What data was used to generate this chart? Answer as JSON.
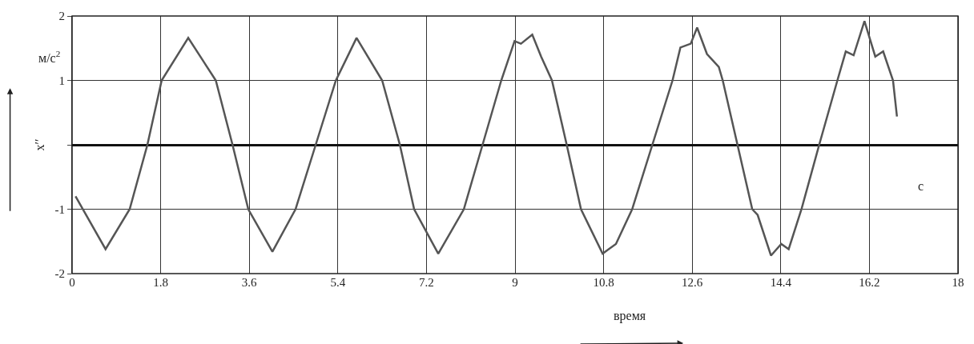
{
  "chart_data": {
    "type": "line",
    "x": [
      0.07,
      0.68,
      1.17,
      1.53,
      1.82,
      2.36,
      2.92,
      3.26,
      3.58,
      4.07,
      4.54,
      4.95,
      5.36,
      5.78,
      6.3,
      6.66,
      6.95,
      7.44,
      7.96,
      8.34,
      8.72,
      8.99,
      9.12,
      9.35,
      9.53,
      9.75,
      10.05,
      10.34,
      10.78,
      11.05,
      11.38,
      11.79,
      12.2,
      12.36,
      12.57,
      12.7,
      12.9,
      13.14,
      13.22,
      13.52,
      13.82,
      13.93,
      14.2,
      14.41,
      14.56,
      14.82,
      15.18,
      15.55,
      15.72,
      15.88,
      16.1,
      16.32,
      16.48,
      16.68,
      16.76
    ],
    "series": [
      {
        "color": "#555555",
        "values": [
          -0.8,
          -1.62,
          -1,
          0,
          1,
          1.66,
          1,
          0,
          -1,
          -1.66,
          -1,
          0,
          1,
          1.66,
          1,
          0,
          -1,
          -1.69,
          -1,
          0,
          1,
          1.61,
          1.57,
          1.71,
          1.37,
          1,
          0,
          -1,
          -1.69,
          -1.54,
          -1,
          0,
          1,
          1.51,
          1.57,
          1.82,
          1.41,
          1.21,
          1,
          0,
          -1,
          -1.09,
          -1.72,
          -1.54,
          -1.62,
          -1,
          0,
          1,
          1.45,
          1.39,
          1.92,
          1.37,
          1.45,
          1.0,
          0.44
        ]
      }
    ],
    "xlim": [
      0,
      18
    ],
    "xticks": [
      0,
      1.8,
      3.6,
      5.4,
      7.2,
      9,
      10.8,
      12.6,
      14.4,
      16.2,
      18
    ],
    "ylim": [
      -2,
      2
    ],
    "yticks": [
      -2,
      -1,
      {
        "value": 0,
        "label": null
      },
      1,
      2
    ],
    "ylabel": "x′′",
    "annotations": [
      "м/с$^{2}$",
      "с",
      "время"
    ],
    "grid": true,
    "line_style": "solid",
    "marker": "none"
  }
}
